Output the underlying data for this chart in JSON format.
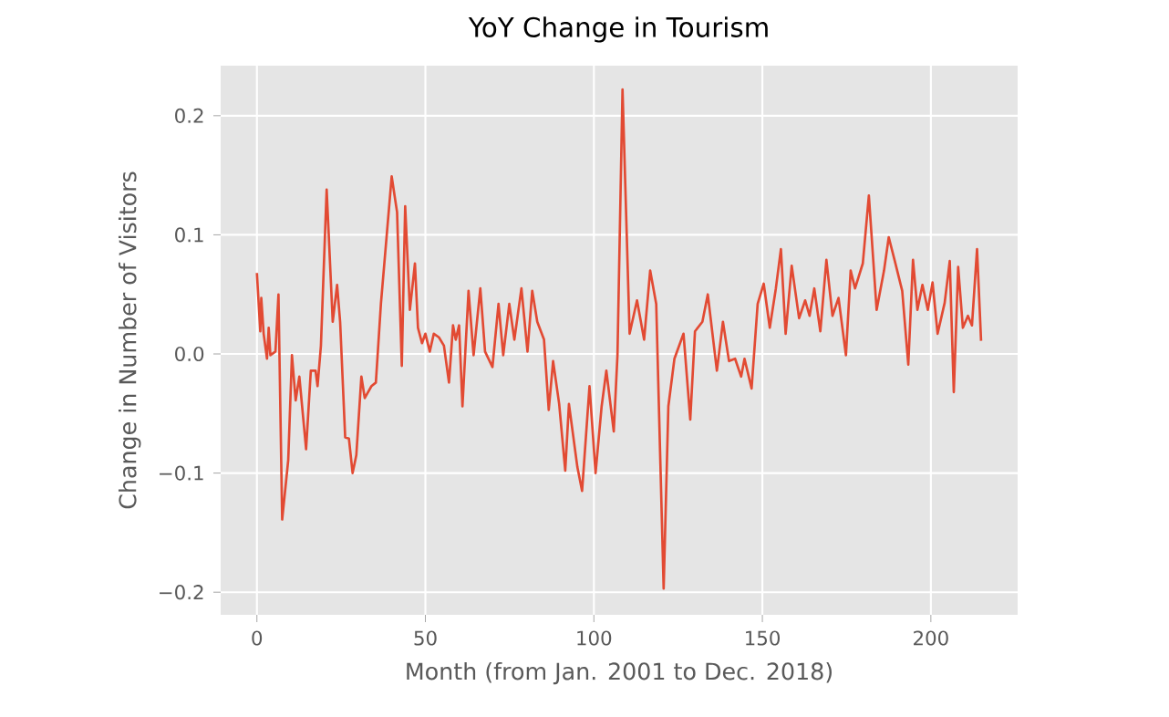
{
  "chart_data": {
    "type": "line",
    "title": "YoY Change in Tourism",
    "xlabel": "Month (from Jan. 2001 to Dec. 2018)",
    "ylabel": "Change in Number of Visitors",
    "color": "#e24a33",
    "grid": true,
    "x": [
      0,
      1,
      1.3,
      2,
      3,
      3.5,
      4,
      5.5,
      6.4,
      7.5,
      9.3,
      10.4,
      11.5,
      12.6,
      14.6,
      16,
      17.4,
      18,
      19,
      20.7,
      22.5,
      23.8,
      24.7,
      26.2,
      27.3,
      28.4,
      29.5,
      31,
      32,
      34,
      35.3,
      36.8,
      40,
      41.6,
      43,
      44,
      45.4,
      46.9,
      47.8,
      49,
      50,
      51.3,
      52.5,
      54,
      55.5,
      57,
      58.2,
      59,
      60,
      61,
      62.8,
      64.3,
      66.3,
      67.7,
      69.9,
      71.7,
      73.1,
      74.9,
      76.4,
      78.5,
      80.3,
      81.7,
      83.2,
      85.2,
      86.6,
      87.9,
      89.7,
      91.5,
      92.6,
      95.1,
      96.5,
      98.7,
      100.5,
      102.3,
      103.7,
      105.9,
      107,
      108.5,
      110.6,
      112.8,
      114.9,
      116.7,
      118.5,
      120.7,
      122.1,
      123.9,
      126.6,
      128.6,
      130,
      132.2,
      133.8,
      136.5,
      138.3,
      140.1,
      141.9,
      143.7,
      144.7,
      146.8,
      148.6,
      150.4,
      152.2,
      154,
      155.5,
      156.9,
      158.7,
      160.9,
      162.7,
      164,
      165.4,
      167.2,
      169,
      170.8,
      172.6,
      174.8,
      176.2,
      177.5,
      179.8,
      181.6,
      183.9,
      186.1,
      187.5,
      189.3,
      191.5,
      193.3,
      194.7,
      196,
      197.5,
      199.1,
      200.5,
      202,
      204.1,
      205.6,
      206.8,
      208.1,
      209.5,
      211,
      212.2,
      213.7,
      214.9
    ],
    "values": [
      0.068,
      0.019,
      0.047,
      0.017,
      -0.004,
      0.022,
      -0.001,
      0.002,
      0.05,
      -0.139,
      -0.089,
      -0.001,
      -0.039,
      -0.019,
      -0.08,
      -0.014,
      -0.014,
      -0.027,
      0.007,
      0.138,
      0.027,
      0.058,
      0.027,
      -0.07,
      -0.071,
      -0.1,
      -0.085,
      -0.019,
      -0.037,
      -0.027,
      -0.024,
      0.042,
      0.149,
      0.119,
      -0.01,
      0.124,
      0.037,
      0.076,
      0.022,
      0.009,
      0.017,
      0.002,
      0.017,
      0.014,
      0.007,
      -0.024,
      0.024,
      0.012,
      0.024,
      -0.044,
      0.053,
      -0.001,
      0.055,
      0.002,
      -0.011,
      0.042,
      -0.001,
      0.042,
      0.012,
      0.055,
      0.002,
      0.053,
      0.027,
      0.012,
      -0.047,
      -0.006,
      -0.042,
      -0.098,
      -0.042,
      -0.095,
      -0.115,
      -0.027,
      -0.1,
      -0.044,
      -0.014,
      -0.065,
      -0.001,
      0.222,
      0.017,
      0.045,
      0.012,
      0.07,
      0.042,
      -0.197,
      -0.044,
      -0.004,
      0.017,
      -0.055,
      0.019,
      0.027,
      0.05,
      -0.014,
      0.027,
      -0.006,
      -0.004,
      -0.019,
      -0.004,
      -0.029,
      0.042,
      0.059,
      0.022,
      0.055,
      0.088,
      0.017,
      0.074,
      0.03,
      0.045,
      0.032,
      0.055,
      0.019,
      0.079,
      0.032,
      0.047,
      -0.001,
      0.07,
      0.055,
      0.076,
      0.133,
      0.037,
      0.07,
      0.098,
      0.078,
      0.053,
      -0.009,
      0.079,
      0.037,
      0.058,
      0.037,
      0.06,
      0.017,
      0.043,
      0.078,
      -0.032,
      0.073,
      0.022,
      0.032,
      0.024,
      0.088,
      0.011
    ],
    "xlim": [
      -10.75,
      225.75
    ],
    "ylim": [
      -0.219,
      0.242
    ],
    "xticks": [
      0,
      50,
      100,
      150,
      200
    ],
    "yticks": [
      {
        "value": -0.2,
        "label": "−0.2"
      },
      {
        "value": -0.1,
        "label": "−0.1"
      },
      {
        "value": 0,
        "label": "0.0"
      },
      0.1,
      0.2
    ]
  }
}
